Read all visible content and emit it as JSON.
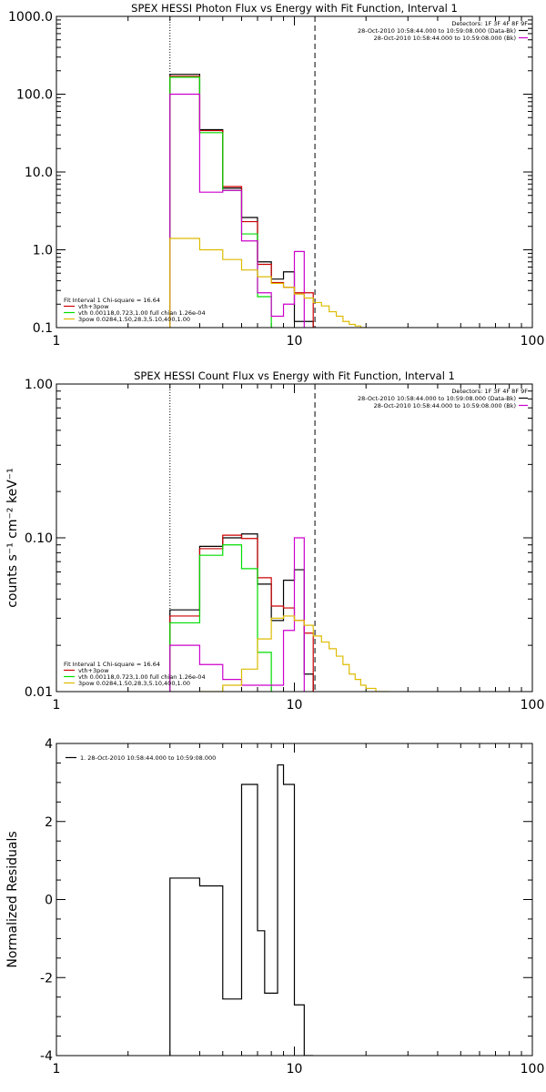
{
  "chart_data": [
    {
      "type": "line",
      "title": "SPEX HESSI Photon Flux vs Energy with Fit Function, Interval 1",
      "xlabel": "",
      "ylabel": "",
      "xscale": "log",
      "yscale": "log",
      "xlim": [
        1,
        100
      ],
      "ylim": [
        0.1,
        1000
      ],
      "xticks": [
        1,
        10,
        100
      ],
      "xtick_labels": [
        "1",
        "10",
        "100"
      ],
      "yticks": [
        0.1,
        1,
        10,
        100,
        1000
      ],
      "ytick_labels": [
        "0.1",
        "1.0",
        "10.0",
        "100.0",
        "1000.0"
      ],
      "vlines": [
        {
          "x": 3,
          "style": "dotted"
        },
        {
          "x": 12.2,
          "style": "dashed"
        }
      ],
      "legend_top": {
        "header": "Detectors: 1F 3F 4F 8F 9F",
        "entries": [
          {
            "label": "28-Oct-2010 10:58:44.000 to 10:59:08.000 (Data-Bk)",
            "color": "#000000"
          },
          {
            "label": "28-Oct-2010 10:58:44.000 to 10:59:08.000 (Bk)",
            "color": "#cc00cc"
          }
        ]
      },
      "legend_fit": {
        "header": "Fit Interval 1    Chi-square = 16.64",
        "entries": [
          {
            "label": "vth+3pow",
            "color": "#cc0000"
          },
          {
            "label": "vth 0.00118,0.723,1.00   full chian 1.26e-04",
            "color": "#00dd00"
          },
          {
            "label": "3pow 0.0284,1.50,28.3,5.10,400,1.00",
            "color": "#ddbb00"
          }
        ]
      },
      "series": [
        {
          "color": "#000000",
          "edges": [
            3,
            4,
            5,
            6,
            7,
            8,
            9,
            10,
            12
          ],
          "values": [
            180,
            35,
            6.2,
            2.6,
            0.7,
            0.42,
            0.52,
            0.12
          ]
        },
        {
          "color": "#cc0000",
          "edges": [
            3,
            4,
            5,
            6,
            7,
            8,
            9,
            10,
            12
          ],
          "values": [
            170,
            34,
            6.5,
            2.3,
            0.65,
            0.38,
            0.33,
            0.28
          ]
        },
        {
          "color": "#00dd00",
          "edges": [
            3,
            4,
            5,
            6,
            7,
            8
          ],
          "values": [
            165,
            32,
            5.8,
            1.6,
            0.25
          ]
        },
        {
          "color": "#cc00cc",
          "edges": [
            3,
            4,
            5,
            6,
            7,
            8,
            9,
            10,
            11
          ],
          "values": [
            100,
            5.5,
            5.8,
            1.3,
            0.28,
            0.14,
            0.2,
            0.95
          ]
        },
        {
          "color": "#ddbb00",
          "edges": [
            3,
            4,
            5,
            6,
            7,
            8,
            9,
            10,
            11,
            12,
            13,
            14,
            15,
            16,
            17,
            18,
            19,
            20
          ],
          "values": [
            1.4,
            1.0,
            0.75,
            0.55,
            0.45,
            0.37,
            0.33,
            0.27,
            0.24,
            0.21,
            0.19,
            0.16,
            0.14,
            0.12,
            0.11,
            0.105,
            0.1
          ]
        }
      ]
    },
    {
      "type": "line",
      "title": "SPEX HESSI Count Flux vs Energy with Fit Function, Interval 1",
      "xlabel": "",
      "ylabel": "counts s⁻¹ cm⁻² keV⁻¹",
      "xscale": "log",
      "yscale": "log",
      "xlim": [
        1,
        100
      ],
      "ylim": [
        0.01,
        1
      ],
      "xticks": [
        1,
        10,
        100
      ],
      "xtick_labels": [
        "1",
        "10",
        "100"
      ],
      "yticks": [
        0.01,
        0.1,
        1
      ],
      "ytick_labels": [
        "0.01",
        "0.10",
        "1.00"
      ],
      "vlines": [
        {
          "x": 3,
          "style": "dotted"
        },
        {
          "x": 12.2,
          "style": "dashed"
        }
      ],
      "legend_top": {
        "header": "Detectors: 1F 3F 4F 8F 9F",
        "entries": [
          {
            "label": "28-Oct-2010 10:58:44.000 to 10:59:08.000 (Data-Bk)",
            "color": "#000000"
          },
          {
            "label": "28-Oct-2010 10:58:44.000 to 10:59:08.000 (Bk)",
            "color": "#cc00cc"
          }
        ]
      },
      "legend_fit": {
        "header": "Fit Interval 1    Chi-square = 16.64",
        "entries": [
          {
            "label": "vth+3pow",
            "color": "#cc0000"
          },
          {
            "label": "vth 0.00118,0.723,1.00   full chian 1.26e-04",
            "color": "#00dd00"
          },
          {
            "label": "3pow 0.0284,1.50,28.3,5.10,400,1.00",
            "color": "#ddbb00"
          }
        ]
      },
      "series": [
        {
          "color": "#000000",
          "edges": [
            3,
            4,
            5,
            6,
            7,
            8,
            9,
            10,
            11,
            12
          ],
          "values": [
            0.034,
            0.088,
            0.1,
            0.106,
            0.05,
            0.029,
            0.053,
            0.062,
            0.013
          ]
        },
        {
          "color": "#cc0000",
          "edges": [
            3,
            4,
            5,
            6,
            7,
            8,
            9,
            10,
            11,
            12
          ],
          "values": [
            0.031,
            0.085,
            0.104,
            0.099,
            0.055,
            0.036,
            0.035,
            0.029,
            0.024
          ]
        },
        {
          "color": "#00dd00",
          "edges": [
            3,
            4,
            5,
            6,
            7,
            8
          ],
          "values": [
            0.028,
            0.077,
            0.09,
            0.063,
            0.018
          ]
        },
        {
          "color": "#cc00cc",
          "edges": [
            3,
            4,
            5,
            6,
            7,
            8,
            9,
            10,
            11
          ],
          "values": [
            0.02,
            0.015,
            0.012,
            0.011,
            0.011,
            0.011,
            0.025,
            0.1
          ]
        },
        {
          "color": "#ddbb00",
          "edges": [
            4,
            5,
            6,
            7,
            8,
            9,
            10,
            11,
            12,
            13,
            14,
            15,
            16,
            17,
            18,
            19,
            20,
            22,
            25
          ],
          "values": [
            0.01,
            0.011,
            0.014,
            0.022,
            0.03,
            0.031,
            0.029,
            0.027,
            0.023,
            0.021,
            0.019,
            0.017,
            0.015,
            0.013,
            0.012,
            0.011,
            0.0105,
            0.01
          ]
        }
      ]
    },
    {
      "type": "line",
      "title": "",
      "xlabel": "",
      "ylabel": "Normalized Residuals",
      "xscale": "log",
      "yscale": "linear",
      "xlim": [
        1,
        100
      ],
      "ylim": [
        -4,
        4
      ],
      "xticks": [
        1,
        10,
        100
      ],
      "xtick_labels": [
        "1",
        "10",
        "100"
      ],
      "yticks": [
        -4,
        -2,
        0,
        2,
        4
      ],
      "ytick_labels": [
        "-4",
        "-2",
        "0",
        "2",
        "4"
      ],
      "legend_top": {
        "header": "",
        "entries": [
          {
            "label": "1. 28-Oct-2010 10:58:44.000 to 10:59:08.000",
            "color": "#000000"
          }
        ]
      },
      "series": [
        {
          "color": "#000000",
          "edges": [
            3,
            4,
            5,
            6,
            7,
            7.5,
            8.5,
            9,
            10,
            11,
            12
          ],
          "values": [
            0.55,
            0.35,
            -2.55,
            2.95,
            -0.8,
            -2.4,
            3.45,
            2.95,
            -2.7,
            -4
          ]
        }
      ]
    }
  ]
}
